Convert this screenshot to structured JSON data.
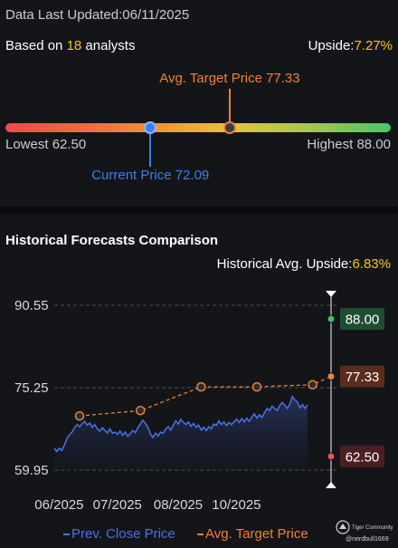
{
  "header": {
    "updated_label": "Data Last Updated:",
    "updated_date": "06/11/2025",
    "based_prefix": "Based on ",
    "analyst_count": "18",
    "based_suffix": " analysts",
    "upside_label": "Upside:",
    "upside_value": "7.27%"
  },
  "gauge": {
    "low": 62.5,
    "high": 88.0,
    "avg": 77.33,
    "current": 72.09,
    "avg_label": "Avg. Target Price 77.33",
    "current_label": "Current Price 72.09",
    "lowest_label": "Lowest 62.50",
    "highest_label": "Highest 88.00"
  },
  "history": {
    "title": "Historical Forecasts Comparison",
    "upside_label": "Historical Avg. Upside:",
    "upside_value": "6.83%"
  },
  "chart_data": {
    "type": "line",
    "y_ticks": [
      59.95,
      75.25,
      90.55
    ],
    "y_tick_labels": [
      "59.95",
      "75.25",
      "90.55"
    ],
    "ylim": [
      59.95,
      90.55
    ],
    "x_tick_labels": [
      "06/2025",
      "07/2025",
      "08/2025",
      "10/2025"
    ],
    "x_tick_positions": [
      0.03,
      0.26,
      0.5,
      0.73
    ],
    "series": [
      {
        "name": "Prev. Close Price",
        "color": "#4a72e8",
        "points": [
          [
            0.0,
            64.0
          ],
          [
            0.01,
            63.4
          ],
          [
            0.02,
            64.0
          ],
          [
            0.03,
            63.6
          ],
          [
            0.04,
            64.6
          ],
          [
            0.05,
            65.8
          ],
          [
            0.06,
            66.5
          ],
          [
            0.07,
            67.0
          ],
          [
            0.08,
            67.8
          ],
          [
            0.09,
            68.4
          ],
          [
            0.1,
            68.0
          ],
          [
            0.11,
            68.6
          ],
          [
            0.12,
            69.0
          ],
          [
            0.13,
            68.3
          ],
          [
            0.14,
            68.7
          ],
          [
            0.15,
            67.9
          ],
          [
            0.16,
            68.4
          ],
          [
            0.17,
            67.6
          ],
          [
            0.18,
            67.2
          ],
          [
            0.19,
            67.8
          ],
          [
            0.2,
            67.3
          ],
          [
            0.21,
            66.9
          ],
          [
            0.22,
            67.6
          ],
          [
            0.23,
            66.8
          ],
          [
            0.24,
            67.0
          ],
          [
            0.25,
            66.6
          ],
          [
            0.26,
            67.2
          ],
          [
            0.27,
            66.4
          ],
          [
            0.28,
            67.0
          ],
          [
            0.29,
            66.2
          ],
          [
            0.3,
            66.7
          ],
          [
            0.31,
            67.3
          ],
          [
            0.32,
            66.9
          ],
          [
            0.33,
            67.8
          ],
          [
            0.34,
            68.5
          ],
          [
            0.35,
            69.2
          ],
          [
            0.36,
            68.6
          ],
          [
            0.37,
            67.9
          ],
          [
            0.38,
            66.6
          ],
          [
            0.39,
            66.0
          ],
          [
            0.4,
            66.8
          ],
          [
            0.41,
            66.3
          ],
          [
            0.42,
            67.0
          ],
          [
            0.43,
            66.8
          ],
          [
            0.44,
            67.6
          ],
          [
            0.45,
            68.0
          ],
          [
            0.46,
            67.4
          ],
          [
            0.47,
            68.3
          ],
          [
            0.48,
            69.1
          ],
          [
            0.49,
            68.5
          ],
          [
            0.5,
            69.4
          ],
          [
            0.51,
            68.8
          ],
          [
            0.52,
            68.4
          ],
          [
            0.53,
            68.9
          ],
          [
            0.54,
            68.1
          ],
          [
            0.55,
            68.6
          ],
          [
            0.56,
            67.9
          ],
          [
            0.57,
            68.3
          ],
          [
            0.58,
            67.4
          ],
          [
            0.59,
            67.9
          ],
          [
            0.6,
            67.3
          ],
          [
            0.61,
            68.0
          ],
          [
            0.62,
            67.6
          ],
          [
            0.63,
            68.5
          ],
          [
            0.64,
            68.2
          ],
          [
            0.65,
            69.1
          ],
          [
            0.66,
            68.4
          ],
          [
            0.67,
            68.9
          ],
          [
            0.68,
            68.2
          ],
          [
            0.69,
            68.8
          ],
          [
            0.7,
            68.4
          ],
          [
            0.71,
            68.9
          ],
          [
            0.72,
            69.4
          ],
          [
            0.73,
            68.8
          ],
          [
            0.74,
            69.5
          ],
          [
            0.75,
            68.9
          ],
          [
            0.76,
            69.6
          ],
          [
            0.77,
            69.0
          ],
          [
            0.78,
            69.8
          ],
          [
            0.79,
            70.4
          ],
          [
            0.8,
            69.6
          ],
          [
            0.81,
            70.2
          ],
          [
            0.82,
            69.7
          ],
          [
            0.83,
            70.6
          ],
          [
            0.84,
            71.4
          ],
          [
            0.85,
            71.0
          ],
          [
            0.86,
            71.8
          ],
          [
            0.87,
            71.4
          ],
          [
            0.88,
            71.0
          ],
          [
            0.89,
            71.9
          ],
          [
            0.9,
            72.5
          ],
          [
            0.91,
            72.0
          ],
          [
            0.92,
            71.4
          ],
          [
            0.93,
            72.2
          ],
          [
            0.94,
            73.6
          ],
          [
            0.95,
            73.0
          ],
          [
            0.96,
            72.6
          ],
          [
            0.97,
            71.5
          ],
          [
            0.98,
            72.1
          ],
          [
            0.99,
            71.4
          ],
          [
            1.0,
            72.09
          ]
        ]
      },
      {
        "name": "Avg. Target Price",
        "color": "#f07f3c",
        "style": "dashed",
        "points": [
          [
            0.1,
            70.0
          ],
          [
            0.34,
            71.0
          ],
          [
            0.58,
            75.4
          ],
          [
            0.8,
            75.4
          ],
          [
            1.02,
            75.8
          ],
          [
            1.1,
            77.33
          ]
        ]
      }
    ],
    "right_markers": [
      {
        "label": "88.00",
        "value": 88.0,
        "bg": "#1f4d33",
        "dot": "#3fbf6a"
      },
      {
        "label": "77.33",
        "value": 77.33,
        "bg": "#5a2c1c",
        "dot": "#f07f3c"
      },
      {
        "label": "62.50",
        "value": 62.5,
        "bg": "#4a1f22",
        "dot": "#e05858"
      }
    ],
    "legend": [
      {
        "label": "Prev. Close Price",
        "color": "#4a72e8"
      },
      {
        "label": "Avg. Target Price",
        "color": "#f07f3c"
      }
    ],
    "legend_position": "bottom",
    "grid": true,
    "watermark": {
      "line1": "Tiger Community",
      "line2": "@nerdbull1669"
    }
  }
}
